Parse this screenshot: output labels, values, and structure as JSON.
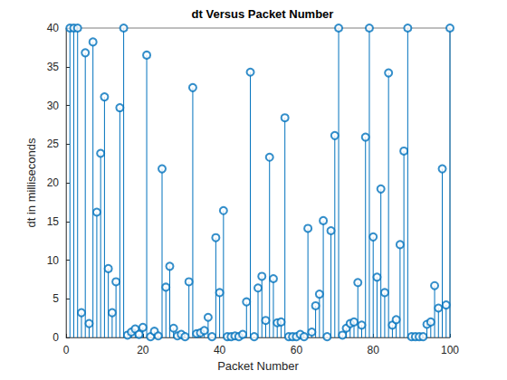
{
  "chart_data": {
    "type": "stem",
    "title": "dt Versus Packet Number",
    "x_label": "Packet Number",
    "y_label": "dt in milliseconds",
    "x": [
      1,
      2,
      3,
      4,
      5,
      6,
      7,
      8,
      9,
      10,
      11,
      12,
      13,
      14,
      15,
      16,
      17,
      18,
      19,
      20,
      21,
      22,
      23,
      24,
      25,
      26,
      27,
      28,
      29,
      30,
      31,
      32,
      33,
      34,
      35,
      36,
      37,
      38,
      39,
      40,
      41,
      42,
      43,
      44,
      45,
      46,
      47,
      48,
      49,
      50,
      51,
      52,
      53,
      54,
      55,
      56,
      57,
      58,
      59,
      60,
      61,
      62,
      63,
      64,
      65,
      66,
      67,
      68,
      69,
      70,
      71,
      72,
      73,
      74,
      75,
      76,
      77,
      78,
      79,
      80,
      81,
      82,
      83,
      84,
      85,
      86,
      87,
      88,
      89,
      90,
      91,
      92,
      93,
      94,
      95,
      96,
      97,
      98,
      99,
      100
    ],
    "values": [
      40,
      40,
      40,
      3.2,
      36.8,
      1.8,
      38.2,
      16.2,
      23.8,
      31.1,
      8.9,
      3.2,
      7.2,
      29.7,
      40,
      0.3,
      0.7,
      1.1,
      0.4,
      1.3,
      36.5,
      0.1,
      0.8,
      0.2,
      21.8,
      6.5,
      9.2,
      1.2,
      0.2,
      0.4,
      0.1,
      7.2,
      32.3,
      0.5,
      0.6,
      0.9,
      2.6,
      0.1,
      12.9,
      5.8,
      16.4,
      0.1,
      0.1,
      0.2,
      0.1,
      0.4,
      4.6,
      34.3,
      0.1,
      6.4,
      7.9,
      2.2,
      23.3,
      7.6,
      1.9,
      2.0,
      28.4,
      0.1,
      0.1,
      0.1,
      0.4,
      0.1,
      14.1,
      0.7,
      4.1,
      5.6,
      15.1,
      0.1,
      13.8,
      26.1,
      40,
      0.3,
      1.2,
      1.8,
      2.0,
      7.1,
      1.6,
      25.9,
      40,
      13.0,
      7.8,
      19.2,
      5.8,
      34.2,
      1.6,
      2.3,
      12.0,
      24.1,
      40,
      0.1,
      0.1,
      0.1,
      0.1,
      1.7,
      2.0,
      6.7,
      3.8,
      21.8,
      4.2,
      40
    ],
    "color": "#0072bd",
    "marker": "circle",
    "xlim": [
      0,
      100
    ],
    "xticks": [
      0,
      20,
      40,
      60,
      80,
      100
    ],
    "ylim": [
      0,
      40
    ],
    "yticks": [
      0,
      5,
      10,
      15,
      20,
      25,
      30,
      35,
      40
    ],
    "grid": false
  }
}
